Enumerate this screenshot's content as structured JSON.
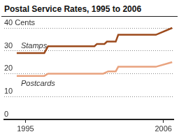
{
  "chart_data": {
    "type": "line",
    "title": "Postal Service Rates, 1995 to 2006",
    "series": [
      {
        "name": "Stamps",
        "color": "#9c4a1c",
        "x": [
          1994.3,
          1996.5,
          1996.8,
          2000.5,
          2000.7,
          2001.3,
          2001.5,
          2002.2,
          2002.4,
          2005.4,
          2006.7
        ],
        "values": [
          29,
          29,
          32,
          32,
          33,
          33,
          34,
          34,
          37,
          37,
          40
        ]
      },
      {
        "name": "Postcards",
        "color": "#e9a37f",
        "x": [
          1994.3,
          1996.5,
          1996.8,
          2001.2,
          2001.6,
          2002.2,
          2002.4,
          2005.4,
          2006.7
        ],
        "values": [
          19,
          19,
          20,
          20,
          21,
          21,
          23,
          23,
          25
        ]
      }
    ],
    "xlim": [
      1993.3,
      2006.8
    ],
    "xticks": [
      1995,
      2006
    ],
    "ylim": [
      0,
      40
    ],
    "yticks": [
      0,
      10,
      20,
      30,
      {
        "value": 40,
        "label": "40 Cents"
      }
    ],
    "grid": true,
    "line_style": "solid"
  }
}
